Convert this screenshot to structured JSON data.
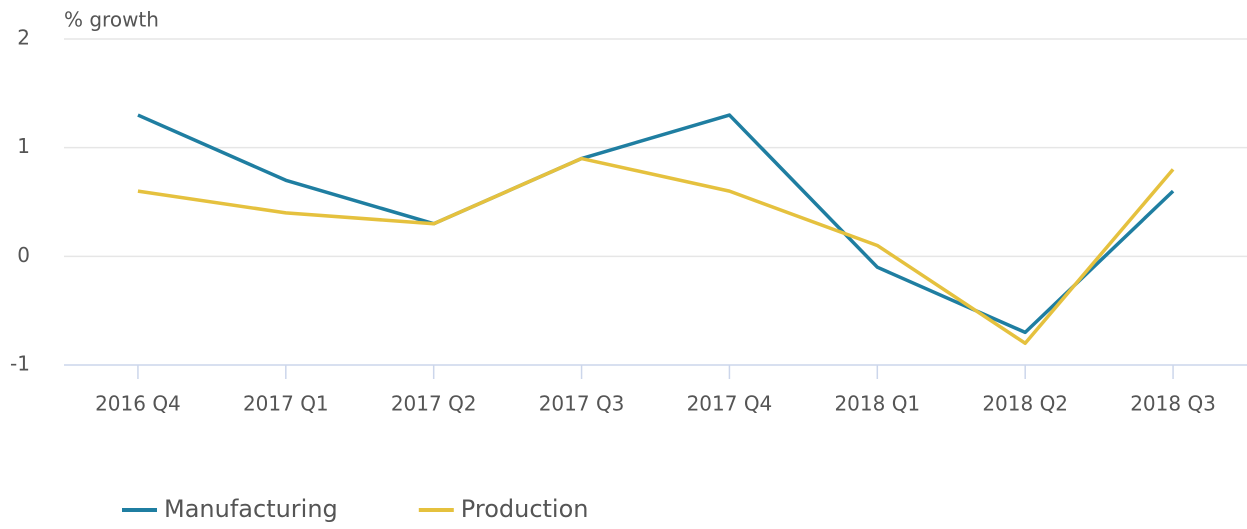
{
  "chart_data": {
    "type": "line",
    "y_label": "% growth",
    "categories": [
      "2016 Q4",
      "2017 Q1",
      "2017 Q2",
      "2017 Q3",
      "2017 Q4",
      "2018 Q1",
      "2018 Q2",
      "2018 Q3"
    ],
    "series": [
      {
        "name": "Manufacturing",
        "color": "#1f7ea1",
        "values": [
          1.3,
          0.7,
          0.3,
          0.9,
          1.3,
          -0.1,
          -0.7,
          0.6
        ]
      },
      {
        "name": "Production",
        "color": "#e5c13e",
        "values": [
          0.6,
          0.4,
          0.3,
          0.9,
          0.6,
          0.1,
          -0.8,
          0.8
        ]
      }
    ],
    "ylim": [
      -1,
      2
    ],
    "yticks": [
      -1,
      0,
      1,
      2
    ],
    "grid": true
  }
}
